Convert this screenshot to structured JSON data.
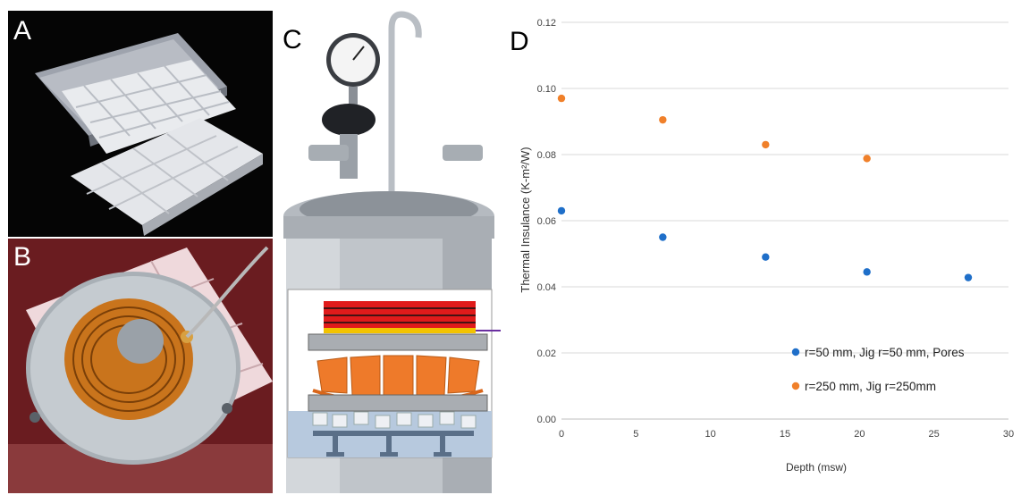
{
  "panels": {
    "a": {
      "letter": "A"
    },
    "b": {
      "letter": "B"
    },
    "c": {
      "letter": "C"
    },
    "d": {
      "letter": "D"
    }
  },
  "colors": {
    "series_blue": "#1f6fc9",
    "series_orange": "#f0802a",
    "gridline": "#d9d9d9"
  },
  "chart_data": {
    "type": "scatter",
    "title": "",
    "xlabel": "Depth (msw)",
    "ylabel": "Thermal Insulance (K-m²/W)",
    "xlim": [
      0,
      30
    ],
    "ylim": [
      0,
      0.12
    ],
    "xticks": [
      "0",
      "5",
      "10",
      "15",
      "20",
      "25",
      "30"
    ],
    "yticks": [
      "0.00",
      "0.02",
      "0.04",
      "0.06",
      "0.08",
      "0.10",
      "0.12"
    ],
    "grid": true,
    "legend_position": "bottom-right",
    "series": [
      {
        "name": "r=50 mm, Jig r=50 mm, Pores",
        "color": "#1f6fc9",
        "x": [
          0,
          6.8,
          13.7,
          20.5,
          27.3
        ],
        "y": [
          0.063,
          0.055,
          0.049,
          0.0445,
          0.0428
        ]
      },
      {
        "name": "r=250 mm, Jig r=250mm",
        "color": "#f0802a",
        "x": [
          0,
          6.8,
          13.7,
          20.5
        ],
        "y": [
          0.097,
          0.0905,
          0.083,
          0.0788
        ]
      }
    ]
  }
}
